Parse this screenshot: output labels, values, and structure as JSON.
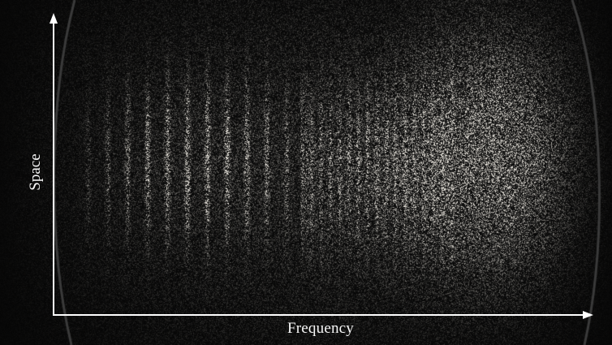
{
  "figure": {
    "x_axis_label": "Frequency",
    "y_axis_label": "Space",
    "colors": {
      "background": "#050505",
      "speckle": "#e8e4dc",
      "axis": "#ffffff",
      "frame_edge": "#3a3a3a"
    }
  }
}
